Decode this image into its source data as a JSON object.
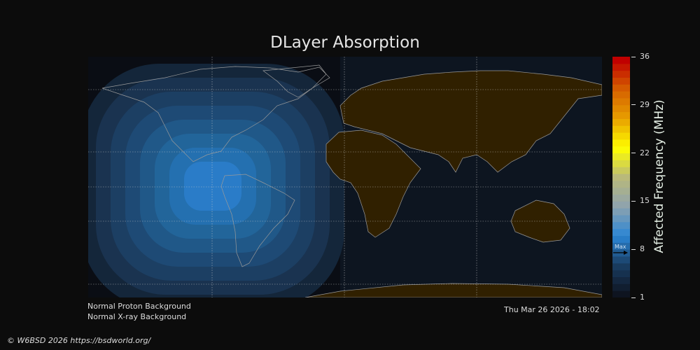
{
  "title": "DLayer Absorption",
  "status": {
    "proton": "Normal Proton Background",
    "xray": "Normal X-ray Background",
    "timestamp": "Thu Mar 26 2026 - 18:02"
  },
  "credit": "© W6BSD 2026 https://bsdworld.org/",
  "colorbar": {
    "label": "Affected Frequency (MHz)",
    "min": 1,
    "max": 36,
    "ticks": [
      "36",
      "29",
      "22",
      "15",
      "8",
      "1"
    ],
    "max_marker_label": "Max",
    "max_marker_value": 7.5,
    "anchor_colors": [
      "#0e1420",
      "#1a3d62",
      "#2b86d4",
      "#8fa3ae",
      "#b9b97a",
      "#ffff00",
      "#e8a000",
      "#d56000",
      "#c00000"
    ]
  },
  "map": {
    "ocean_color": "#0d1520",
    "land_color": "#302000",
    "coastline_color": "#9a9a9a",
    "absorption_levels": [
      "#14263a",
      "#1a3350",
      "#1c3f63",
      "#1e4a75",
      "#205888",
      "#22659a",
      "#2470b0",
      "#2a7cc8"
    ]
  }
}
